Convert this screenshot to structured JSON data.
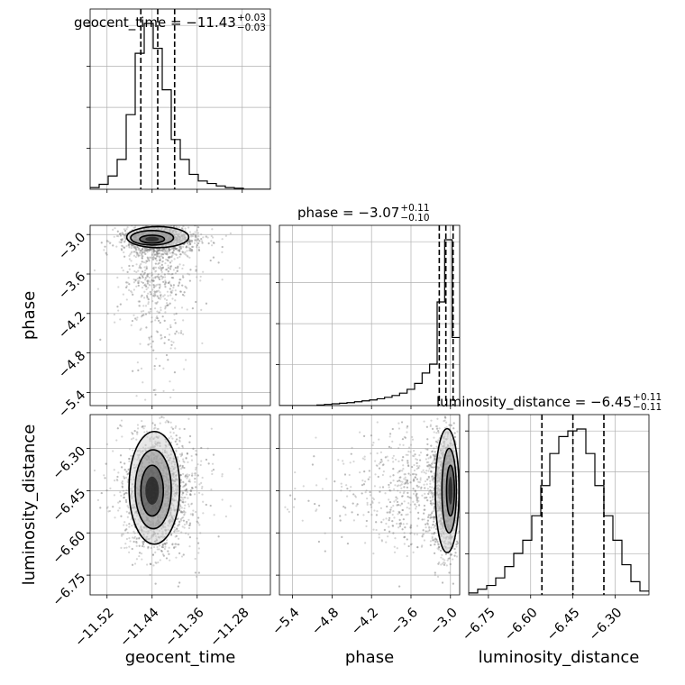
{
  "chart_data": {
    "type": "corner",
    "parameters": [
      "geocent_time",
      "phase",
      "luminosity_distance"
    ],
    "panel_titles": [
      {
        "param": "geocent_time",
        "prefix": "geocent_time = ",
        "median": "−11.43",
        "plus": "+0.03",
        "minus": "−0.03"
      },
      {
        "param": "phase",
        "prefix": "phase = ",
        "median": "−3.07",
        "plus": "+0.11",
        "minus": "−0.10"
      },
      {
        "param": "luminosity_distance",
        "prefix": "luminosity_distance = ",
        "median": "−6.45",
        "plus": "+0.11",
        "minus": "−0.11"
      }
    ],
    "axes": {
      "geocent_time": {
        "range": [
          -11.55,
          -11.23
        ],
        "ticks": [
          -11.52,
          -11.44,
          -11.36,
          -11.28
        ],
        "tick_labels": [
          "−11.52",
          "−11.44",
          "−11.36",
          "−11.28"
        ]
      },
      "phase": {
        "range": [
          -5.6,
          -2.86
        ],
        "ticks": [
          -5.4,
          -4.8,
          -4.2,
          -3.6,
          -3.0
        ],
        "tick_labels": [
          "−5.4",
          "−4.8",
          "−4.2",
          "−3.6",
          "−3.0"
        ]
      },
      "luminosity_distance": {
        "range": [
          -6.82,
          -6.18
        ],
        "ticks": [
          -6.75,
          -6.6,
          -6.45,
          -6.3
        ],
        "tick_labels": [
          "−6.75",
          "−6.60",
          "−6.45",
          "−6.30"
        ]
      }
    },
    "quantiles": {
      "geocent_time": [
        -11.46,
        -11.43,
        -11.4
      ],
      "phase": [
        -3.17,
        -3.07,
        -2.96
      ],
      "luminosity_distance": [
        -6.56,
        -6.45,
        -6.34
      ]
    },
    "histograms": {
      "geocent_time": {
        "range": [
          -11.55,
          -11.23
        ],
        "counts": [
          1,
          3,
          8,
          18,
          45,
          82,
          100,
          85,
          60,
          30,
          18,
          9,
          5,
          3.5,
          2,
          1,
          0.6,
          0,
          0,
          0
        ]
      },
      "phase": {
        "range": [
          -5.6,
          -2.86
        ],
        "counts": [
          0,
          0,
          0,
          0,
          0,
          0.2,
          0.4,
          0.6,
          0.8,
          1,
          1.3,
          1.6,
          1.9,
          2.3,
          2.8,
          3.4,
          4.2,
          5.5,
          7.5,
          11,
          14,
          35,
          56,
          23
        ]
      },
      "luminosity_distance": {
        "range": [
          -6.82,
          -6.18
        ],
        "counts": [
          1,
          3,
          5,
          9,
          15,
          22,
          29,
          42,
          58,
          75,
          84,
          87,
          88,
          75,
          58,
          42,
          29,
          16,
          7,
          2
        ]
      }
    },
    "grid": true,
    "layout": "lower-triangle 3x3"
  }
}
